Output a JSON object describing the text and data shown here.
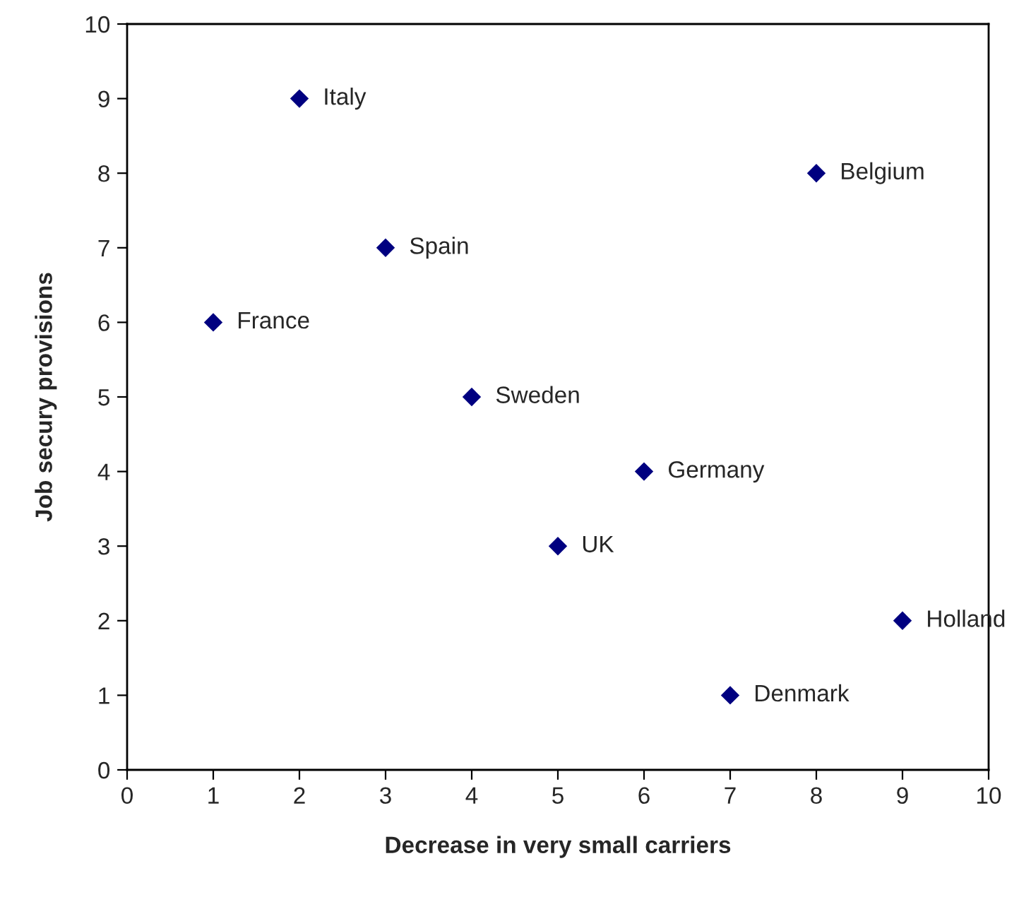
{
  "chart_data": {
    "type": "scatter",
    "xlabel": "Decrease in very small carriers",
    "ylabel": "Job secury provisions",
    "x": [
      1,
      2,
      3,
      4,
      5,
      6,
      7,
      8,
      9
    ],
    "series": [
      {
        "color": "#000080",
        "values": [
          6,
          9,
          7,
          5,
          3,
          4,
          1,
          8,
          2
        ]
      }
    ],
    "marker": "diamond",
    "xlim": [
      0,
      10
    ],
    "xticks": [
      0,
      1,
      2,
      3,
      4,
      5,
      6,
      7,
      8,
      9,
      10
    ],
    "ylim": [
      0,
      10
    ],
    "yticks": [
      0,
      1,
      2,
      3,
      4,
      5,
      6,
      7,
      8,
      9,
      10
    ],
    "grid": false,
    "legend": false,
    "annotations": [
      {
        "text": "France",
        "x": 1,
        "y": 6
      },
      {
        "text": "Italy",
        "x": 2,
        "y": 9
      },
      {
        "text": "Spain",
        "x": 3,
        "y": 7
      },
      {
        "text": "Sweden",
        "x": 4,
        "y": 5
      },
      {
        "text": "UK",
        "x": 5,
        "y": 3
      },
      {
        "text": "Germany",
        "x": 6,
        "y": 4
      },
      {
        "text": "Denmark",
        "x": 7,
        "y": 1
      },
      {
        "text": "Belgium",
        "x": 8,
        "y": 8
      },
      {
        "text": "Holland",
        "x": 9,
        "y": 2
      }
    ]
  }
}
